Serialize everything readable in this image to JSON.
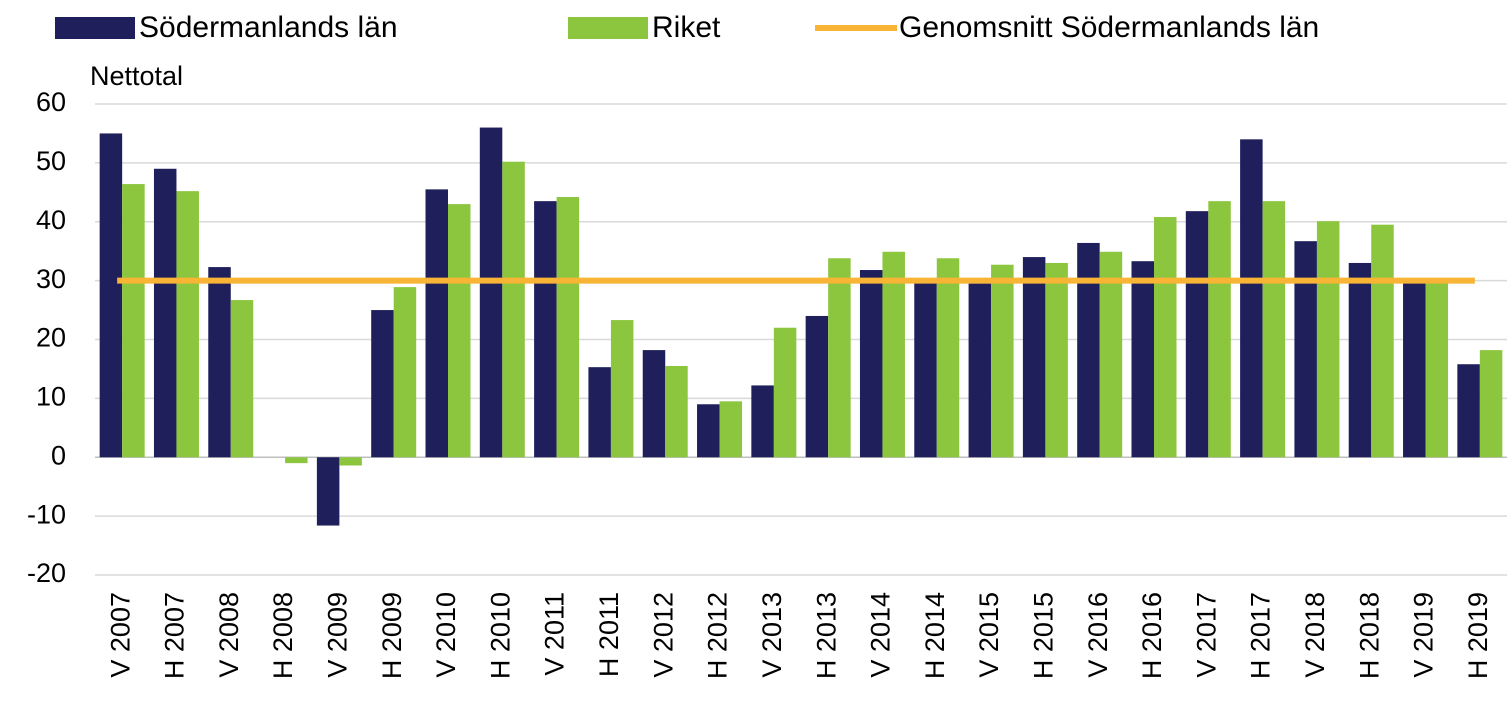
{
  "chart_data": {
    "type": "bar",
    "y_label": "Nettotal",
    "categories": [
      "V 2007",
      "H 2007",
      "V 2008",
      "H 2008",
      "V 2009",
      "H 2009",
      "V 2010",
      "H 2010",
      "V 2011",
      "H 2011",
      "V 2012",
      "H 2012",
      "V 2013",
      "H 2013",
      "V 2014",
      "H 2014",
      "V 2015",
      "H 2015",
      "V 2016",
      "H 2016",
      "V 2017",
      "H 2017",
      "V 2018",
      "H 2018",
      "V 2019",
      "H 2019"
    ],
    "series": [
      {
        "name": "Södermanlands län",
        "color": "#1f1f5c",
        "values": [
          55,
          49,
          32.3,
          0,
          -11.6,
          25,
          45.5,
          56,
          43.5,
          15.3,
          18.2,
          9,
          12.2,
          24,
          31.8,
          30,
          29.5,
          34,
          36.4,
          33.3,
          41.8,
          54,
          36.7,
          33,
          30,
          15.8
        ]
      },
      {
        "name": "Riket",
        "color": "#8cc63f",
        "values": [
          46.4,
          45.2,
          26.7,
          -1,
          -1.4,
          28.9,
          43,
          50.2,
          44.2,
          23.3,
          15.5,
          9.5,
          22,
          33.8,
          34.9,
          33.8,
          32.7,
          33,
          34.9,
          40.8,
          43.5,
          43.5,
          40.1,
          39.5,
          30,
          18.2
        ]
      },
      {
        "name": "Genomsnitt Södermanlands län",
        "type": "line",
        "color": "#f7b435",
        "values": [
          30,
          30,
          30,
          30,
          30,
          30,
          30,
          30,
          30,
          30,
          30,
          30,
          30,
          30,
          30,
          30,
          30,
          30,
          30,
          30,
          30,
          30,
          30,
          30,
          30,
          30
        ]
      }
    ],
    "ylim": [
      -20,
      60
    ],
    "yticks": [
      -20,
      -10,
      0,
      10,
      20,
      30,
      40,
      50,
      60
    ],
    "grid": true
  }
}
